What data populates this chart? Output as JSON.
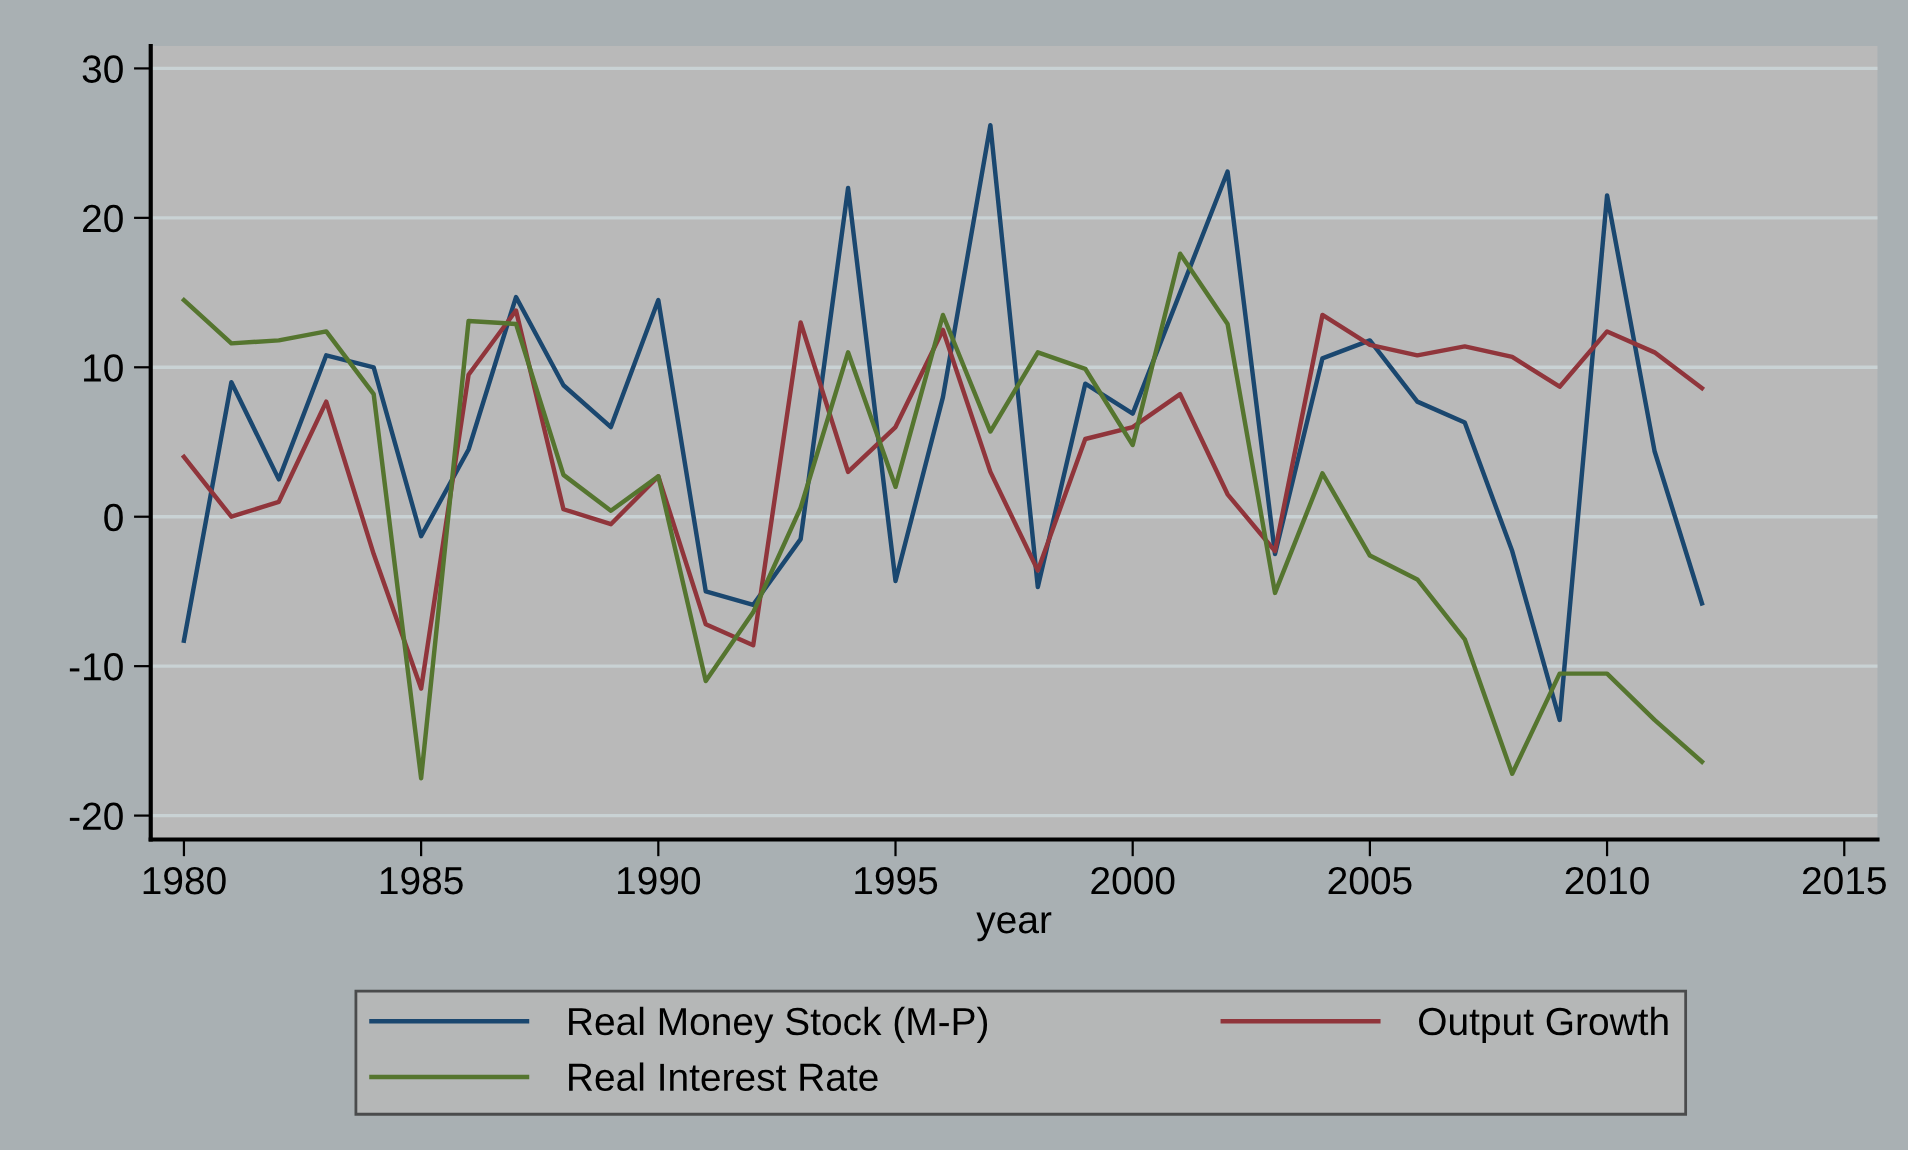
{
  "chart_data": {
    "type": "line",
    "xlabel": "year",
    "x": [
      1980,
      1981,
      1982,
      1983,
      1984,
      1985,
      1986,
      1987,
      1988,
      1989,
      1990,
      1991,
      1992,
      1993,
      1994,
      1995,
      1996,
      1997,
      1998,
      1999,
      2000,
      2001,
      2002,
      2003,
      2004,
      2005,
      2006,
      2007,
      2008,
      2009,
      2010,
      2011,
      2012
    ],
    "series": [
      {
        "name": "Real Money Stock (M-P)",
        "color": "#1a476f",
        "values": [
          -8.3,
          9,
          2.5,
          10.8,
          10,
          -1.3,
          4.5,
          14.7,
          8.8,
          6,
          14.5,
          -5,
          -5.9,
          -1.5,
          22,
          -4.3,
          8,
          26.2,
          -4.7,
          8.9,
          6.9,
          15,
          23.1,
          -2.5,
          10.6,
          11.8,
          7.7,
          6.3,
          -2.3,
          -13.6,
          21.5,
          4.4,
          -5.8
        ]
      },
      {
        "name": "Output Growth",
        "color": "#90353b",
        "values": [
          4,
          0,
          1,
          7.7,
          -2.5,
          -11.5,
          9.5,
          13.8,
          0.5,
          -0.5,
          2.7,
          -7.2,
          -8.6,
          13,
          3,
          6,
          12.5,
          3,
          -3.6,
          5.2,
          6,
          8.2,
          1.5,
          -2.3,
          13.5,
          11.5,
          10.8,
          11.4,
          10.7,
          8.7,
          12.4,
          11,
          8.6
        ]
      },
      {
        "name": "Real Interest Rate",
        "color": "#55752f",
        "values": [
          14.5,
          11.6,
          11.8,
          12.4,
          8.2,
          -17.5,
          13.1,
          12.9,
          2.8,
          0.4,
          2.7,
          -11,
          -6.4,
          0.6,
          11,
          2,
          13.5,
          5.7,
          11,
          9.9,
          4.8,
          17.6,
          12.9,
          -5.1,
          2.9,
          -2.6,
          -4.2,
          -8.2,
          -17.2,
          -10.5,
          -10.5,
          -13.6,
          -16.4
        ]
      }
    ],
    "xlim": [
      1979.3,
      2015.7
    ],
    "xticks": [
      1980,
      1985,
      1990,
      1995,
      2000,
      2005,
      2010,
      2015
    ],
    "ylim": [
      -21.6,
      31.5
    ],
    "yticks": [
      -20,
      -10,
      0,
      10,
      20,
      30
    ],
    "grid": "y",
    "legend": "bottom",
    "marker": "none",
    "line_style": "solid"
  }
}
